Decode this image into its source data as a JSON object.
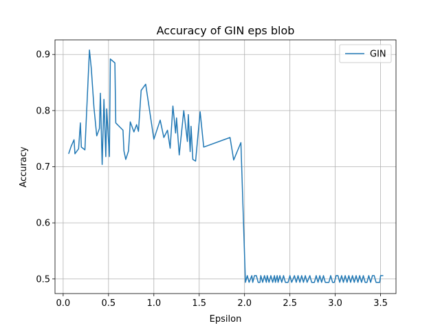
{
  "chart_data": {
    "type": "line",
    "title": "Accuracy of GIN eps blob",
    "xlabel": "Epsilon",
    "ylabel": "Accuracy",
    "xlim": [
      -0.09,
      3.67
    ],
    "ylim": [
      0.474,
      0.926
    ],
    "xticks": [
      "0.0",
      "0.5",
      "1.0",
      "1.5",
      "2.0",
      "2.5",
      "3.0",
      "3.5"
    ],
    "yticks": [
      "0.5",
      "0.6",
      "0.7",
      "0.8",
      "0.9"
    ],
    "grid": true,
    "legend_position": "top-right",
    "series": [
      {
        "name": "GIN",
        "color": "#1f77b4",
        "points": [
          [
            0.06,
            0.723
          ],
          [
            0.09,
            0.737
          ],
          [
            0.12,
            0.748
          ],
          [
            0.13,
            0.723
          ],
          [
            0.17,
            0.732
          ],
          [
            0.19,
            0.778
          ],
          [
            0.2,
            0.735
          ],
          [
            0.24,
            0.73
          ],
          [
            0.29,
            0.908
          ],
          [
            0.31,
            0.875
          ],
          [
            0.34,
            0.805
          ],
          [
            0.37,
            0.755
          ],
          [
            0.4,
            0.768
          ],
          [
            0.41,
            0.831
          ],
          [
            0.43,
            0.704
          ],
          [
            0.45,
            0.82
          ],
          [
            0.47,
            0.718
          ],
          [
            0.48,
            0.803
          ],
          [
            0.51,
            0.718
          ],
          [
            0.52,
            0.892
          ],
          [
            0.57,
            0.885
          ],
          [
            0.58,
            0.778
          ],
          [
            0.66,
            0.765
          ],
          [
            0.67,
            0.728
          ],
          [
            0.69,
            0.713
          ],
          [
            0.72,
            0.728
          ],
          [
            0.74,
            0.78
          ],
          [
            0.78,
            0.762
          ],
          [
            0.81,
            0.775
          ],
          [
            0.83,
            0.763
          ],
          [
            0.86,
            0.836
          ],
          [
            0.91,
            0.847
          ],
          [
            1.0,
            0.749
          ],
          [
            1.07,
            0.783
          ],
          [
            1.11,
            0.752
          ],
          [
            1.15,
            0.765
          ],
          [
            1.18,
            0.733
          ],
          [
            1.21,
            0.808
          ],
          [
            1.24,
            0.76
          ],
          [
            1.25,
            0.787
          ],
          [
            1.28,
            0.721
          ],
          [
            1.33,
            0.8
          ],
          [
            1.37,
            0.745
          ],
          [
            1.38,
            0.793
          ],
          [
            1.4,
            0.727
          ],
          [
            1.41,
            0.772
          ],
          [
            1.43,
            0.713
          ],
          [
            1.46,
            0.71
          ],
          [
            1.51,
            0.798
          ],
          [
            1.55,
            0.735
          ],
          [
            1.84,
            0.752
          ],
          [
            1.88,
            0.712
          ],
          [
            1.96,
            0.743
          ],
          [
            2.01,
            0.494
          ],
          [
            2.03,
            0.506
          ],
          [
            2.05,
            0.494
          ],
          [
            2.08,
            0.506
          ],
          [
            2.09,
            0.494
          ],
          [
            2.11,
            0.506
          ],
          [
            2.13,
            0.506
          ],
          [
            2.15,
            0.494
          ],
          [
            2.17,
            0.494
          ],
          [
            2.18,
            0.506
          ],
          [
            2.2,
            0.494
          ],
          [
            2.22,
            0.506
          ],
          [
            2.24,
            0.494
          ],
          [
            2.25,
            0.506
          ],
          [
            2.27,
            0.494
          ],
          [
            2.29,
            0.506
          ],
          [
            2.31,
            0.494
          ],
          [
            2.33,
            0.506
          ],
          [
            2.34,
            0.494
          ],
          [
            2.36,
            0.506
          ],
          [
            2.37,
            0.494
          ],
          [
            2.39,
            0.506
          ],
          [
            2.41,
            0.494
          ],
          [
            2.43,
            0.506
          ],
          [
            2.45,
            0.494
          ],
          [
            2.48,
            0.494
          ],
          [
            2.5,
            0.506
          ],
          [
            2.52,
            0.494
          ],
          [
            2.55,
            0.506
          ],
          [
            2.57,
            0.494
          ],
          [
            2.59,
            0.506
          ],
          [
            2.61,
            0.494
          ],
          [
            2.63,
            0.506
          ],
          [
            2.65,
            0.494
          ],
          [
            2.67,
            0.506
          ],
          [
            2.69,
            0.494
          ],
          [
            2.72,
            0.506
          ],
          [
            2.74,
            0.494
          ],
          [
            2.77,
            0.494
          ],
          [
            2.79,
            0.506
          ],
          [
            2.81,
            0.494
          ],
          [
            2.83,
            0.506
          ],
          [
            2.85,
            0.494
          ],
          [
            2.87,
            0.506
          ],
          [
            2.89,
            0.494
          ],
          [
            2.91,
            0.494
          ],
          [
            2.93,
            0.494
          ],
          [
            2.95,
            0.506
          ],
          [
            2.97,
            0.494
          ],
          [
            2.99,
            0.494
          ],
          [
            3.01,
            0.506
          ],
          [
            3.03,
            0.506
          ],
          [
            3.05,
            0.494
          ],
          [
            3.07,
            0.506
          ],
          [
            3.09,
            0.494
          ],
          [
            3.11,
            0.506
          ],
          [
            3.13,
            0.494
          ],
          [
            3.15,
            0.506
          ],
          [
            3.17,
            0.494
          ],
          [
            3.19,
            0.506
          ],
          [
            3.21,
            0.494
          ],
          [
            3.23,
            0.506
          ],
          [
            3.25,
            0.494
          ],
          [
            3.27,
            0.506
          ],
          [
            3.29,
            0.494
          ],
          [
            3.31,
            0.506
          ],
          [
            3.33,
            0.494
          ],
          [
            3.35,
            0.494
          ],
          [
            3.37,
            0.506
          ],
          [
            3.39,
            0.494
          ],
          [
            3.41,
            0.506
          ],
          [
            3.43,
            0.506
          ],
          [
            3.45,
            0.494
          ],
          [
            3.47,
            0.494
          ],
          [
            3.49,
            0.494
          ],
          [
            3.5,
            0.506
          ],
          [
            3.53,
            0.506
          ]
        ]
      }
    ]
  }
}
